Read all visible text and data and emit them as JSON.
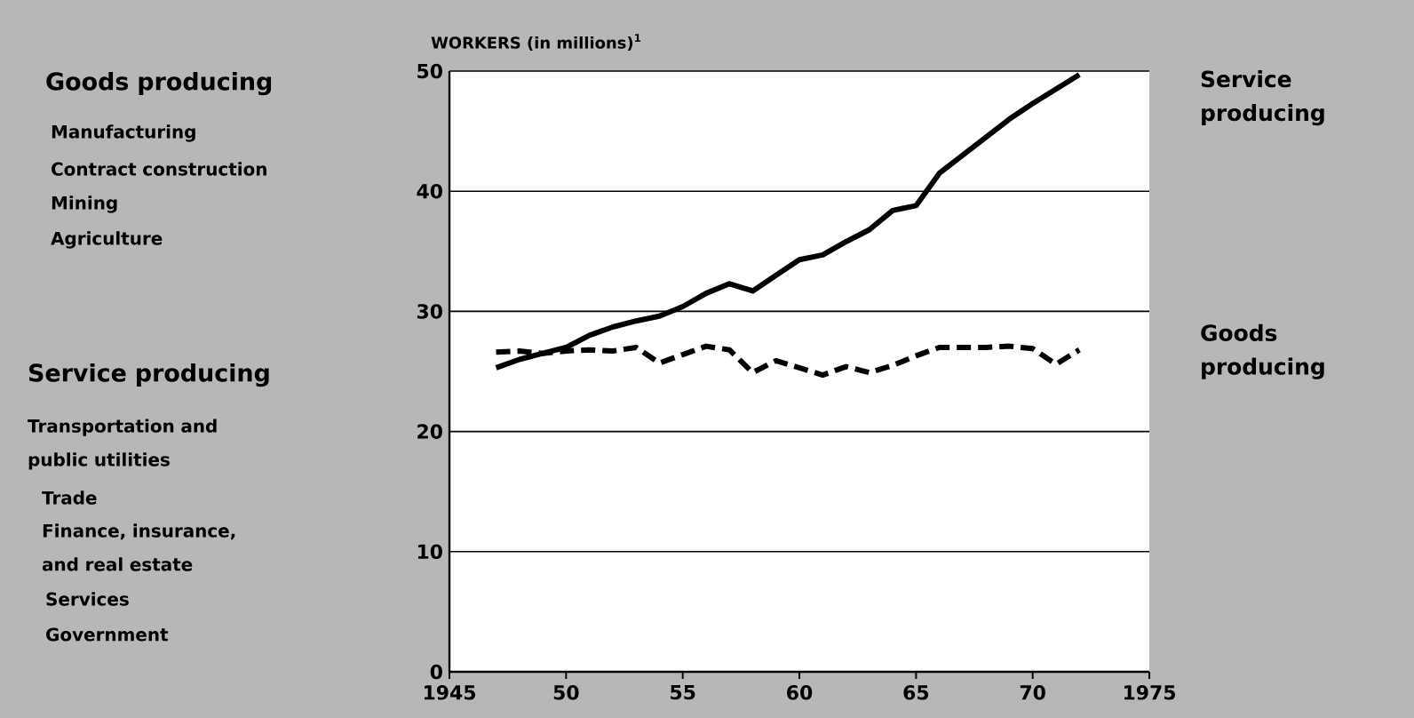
{
  "chart_data": {
    "type": "line",
    "ylabel": "WORKERS  (in millions)$^{1}$",
    "x": [
      1947,
      1948,
      1949,
      1950,
      1951,
      1952,
      1953,
      1954,
      1955,
      1956,
      1957,
      1958,
      1959,
      1960,
      1961,
      1962,
      1963,
      1964,
      1965,
      1966,
      1967,
      1968,
      1969,
      1970,
      1971,
      1972
    ],
    "series": [
      {
        "name": "Service producing",
        "color": "#000000",
        "line_style": "solid",
        "values": [
          25.3,
          26.0,
          26.5,
          27.0,
          28.0,
          28.7,
          29.2,
          29.6,
          30.4,
          31.5,
          32.3,
          31.7,
          33.0,
          34.3,
          34.7,
          35.8,
          36.8,
          38.4,
          38.8,
          41.5,
          43.0,
          44.5,
          46.0,
          47.3,
          48.5,
          49.7
        ]
      },
      {
        "name": "Goods producing",
        "color": "#000000",
        "line_style": "dashed",
        "values": [
          26.6,
          26.7,
          26.5,
          26.7,
          26.8,
          26.7,
          27.0,
          25.7,
          26.4,
          27.1,
          26.8,
          24.9,
          25.9,
          25.3,
          24.7,
          25.4,
          24.9,
          25.5,
          26.3,
          27.0,
          27.0,
          27.0,
          27.1,
          26.9,
          25.6,
          26.8
        ]
      }
    ],
    "xlim": [
      1945,
      1975
    ],
    "ylim": [
      0,
      50
    ],
    "xticks": [
      {
        "value": 1945,
        "label": "1945"
      },
      {
        "value": 1950,
        "label": "50"
      },
      {
        "value": 1955,
        "label": "55"
      },
      {
        "value": 1960,
        "label": "60"
      },
      {
        "value": 1965,
        "label": "65"
      },
      {
        "value": 1970,
        "label": "70"
      },
      {
        "value": 1975,
        "label": "1975"
      }
    ],
    "yticks": [
      0,
      10,
      20,
      30,
      40,
      50
    ],
    "grid": "y",
    "annotations": [
      "Goods producing",
      "Manufacturing",
      "Contract construction",
      "Mining",
      "Agriculture",
      "Service producing",
      "Transportation and public utilities",
      "Trade",
      "Finance, insurance, and real estate",
      "Services",
      "Government"
    ]
  }
}
